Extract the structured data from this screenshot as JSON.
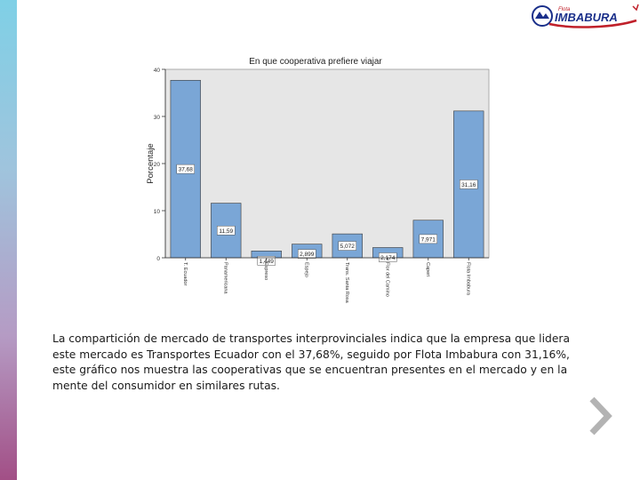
{
  "logo": {
    "small_text": "Flota",
    "brand_text": "IMBABURA"
  },
  "chart_data": {
    "type": "bar",
    "title": "En que cooperativa prefiere viajar",
    "ylabel": "Porcentaje",
    "xlabel": "",
    "ylim": [
      0,
      40
    ],
    "yticks": [
      0,
      10,
      20,
      30,
      40
    ],
    "ytick_labels": [
      "0",
      "10",
      "20",
      "30",
      "40"
    ],
    "categories": [
      "T. Ecuador",
      "Panamericana",
      "Expreso",
      "Espejo",
      "Trans. Santa Rosa",
      "Flor del Camino",
      "Caperi",
      "Flota Imbabura"
    ],
    "values": [
      37.68,
      11.59,
      1.449,
      2.899,
      5.072,
      2.174,
      7.971,
      31.16
    ],
    "value_labels": [
      "37,68",
      "11,59",
      "1,449",
      "2,899",
      "5,072",
      "2,174",
      "7,971",
      "31,16"
    ],
    "bar_color": "#7aa6d6",
    "plot_background": "#e6e6e6",
    "grid": false,
    "legend": "none"
  },
  "caption": "La compartición de mercado de transportes interprovinciales indica que la empresa que lidera este mercado es Transportes Ecuador con el 37,68%, seguido por Flota Imbabura con 31,16%, este gráfico nos muestra las cooperativas que se encuentran presentes en el mercado y en la mente del consumidor en similares rutas.",
  "nav": {
    "next_icon": "chevron-right-icon"
  }
}
